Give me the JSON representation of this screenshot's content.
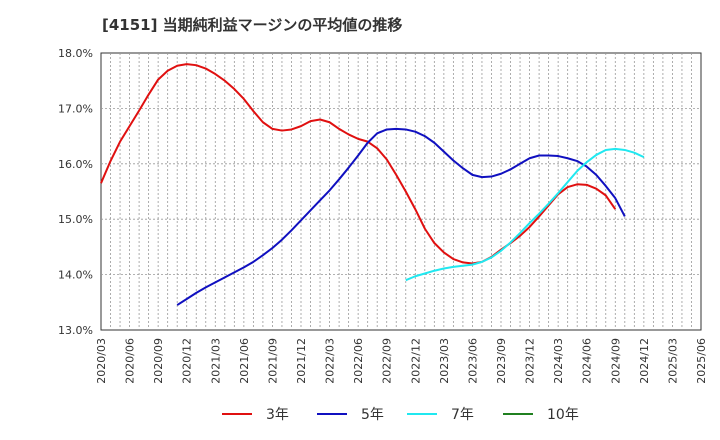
{
  "chart_data": {
    "type": "line",
    "title": "[4151]  当期純利益マージンの平均値の推移",
    "ylim": [
      13.0,
      18.0
    ],
    "y_ticks": [
      "13.0%",
      "14.0%",
      "15.0%",
      "16.0%",
      "17.0%",
      "18.0%"
    ],
    "y_tick_values": [
      13,
      14,
      15,
      16,
      17,
      18
    ],
    "x_tick_labels": [
      "2020/03",
      "2020/06",
      "2020/09",
      "2020/12",
      "2021/03",
      "2021/06",
      "2021/09",
      "2021/12",
      "2022/03",
      "2022/06",
      "2022/09",
      "2022/12",
      "2023/03",
      "2023/06",
      "2023/09",
      "2023/12",
      "2024/03",
      "2024/06",
      "2024/09",
      "2024/12",
      "2025/03",
      "2025/06"
    ],
    "grid": true,
    "legend_position": "bottom",
    "series": [
      {
        "name": "3年",
        "color": "#e01010",
        "start_index": 0,
        "values": [
          15.65,
          16.05,
          16.4,
          16.68,
          16.96,
          17.25,
          17.52,
          17.68,
          17.77,
          17.8,
          17.78,
          17.72,
          17.62,
          17.5,
          17.35,
          17.17,
          16.95,
          16.75,
          16.63,
          16.6,
          16.62,
          16.68,
          16.77,
          16.8,
          16.75,
          16.63,
          16.53,
          16.45,
          16.4,
          16.28,
          16.08,
          15.8,
          15.5,
          15.18,
          14.83,
          14.57,
          14.4,
          14.28,
          14.22,
          14.2,
          14.23,
          14.32,
          14.45,
          14.57,
          14.7,
          14.86,
          15.05,
          15.25,
          15.45,
          15.58,
          15.63,
          15.62,
          15.55,
          15.43,
          15.18
        ]
      },
      {
        "name": "5年",
        "color": "#1010c0",
        "start_index": 8,
        "values": [
          13.45,
          13.56,
          13.67,
          13.77,
          13.86,
          13.95,
          14.04,
          14.13,
          14.23,
          14.35,
          14.48,
          14.63,
          14.8,
          14.98,
          15.16,
          15.34,
          15.52,
          15.72,
          15.93,
          16.15,
          16.38,
          16.55,
          16.62,
          16.63,
          16.62,
          16.58,
          16.5,
          16.38,
          16.22,
          16.06,
          15.92,
          15.8,
          15.76,
          15.77,
          15.82,
          15.9,
          16.0,
          16.1,
          16.15,
          16.15,
          16.14,
          16.1,
          16.05,
          15.95,
          15.8,
          15.6,
          15.38,
          15.05
        ]
      },
      {
        "name": "7年",
        "color": "#20e8f0",
        "start_index": 32,
        "values": [
          13.9,
          13.97,
          14.02,
          14.07,
          14.11,
          14.14,
          14.16,
          14.18,
          14.23,
          14.31,
          14.43,
          14.58,
          14.75,
          14.93,
          15.1,
          15.28,
          15.47,
          15.67,
          15.87,
          16.03,
          16.16,
          16.25,
          16.27,
          16.25,
          16.2,
          16.12
        ]
      },
      {
        "name": "10年",
        "color": "#208020",
        "start_index": 0,
        "values": []
      }
    ]
  }
}
